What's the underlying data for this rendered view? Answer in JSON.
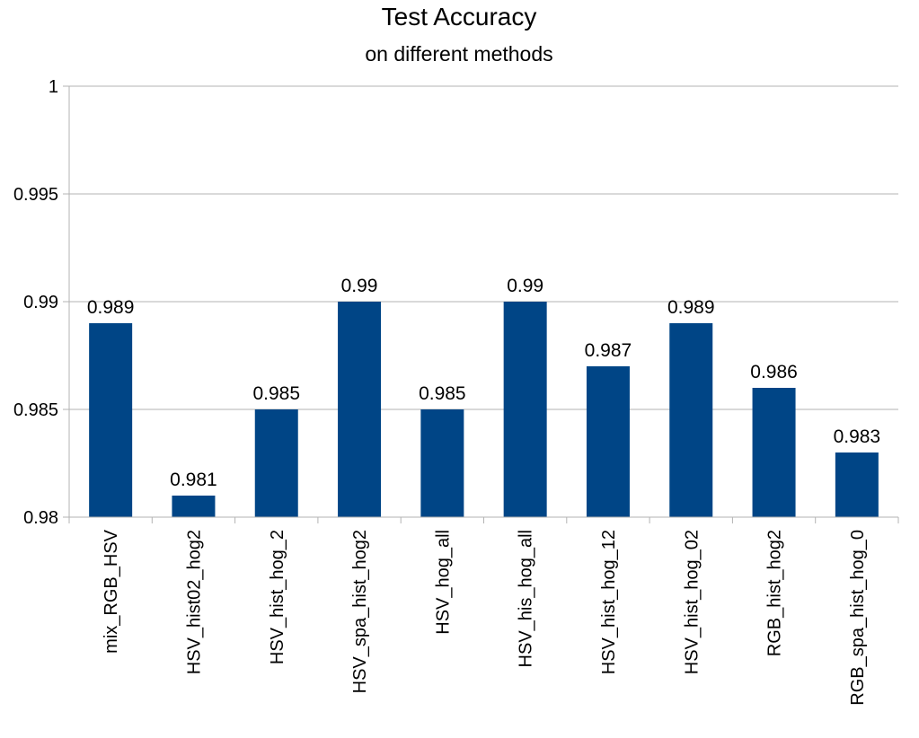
{
  "chart_data": {
    "type": "bar",
    "title": "Test Accuracy",
    "subtitle": "on different methods",
    "xlabel": "",
    "ylabel": "",
    "ylim": [
      0.98,
      1
    ],
    "yticks": [
      "0.98",
      "0.985",
      "0.99",
      "0.995",
      "1"
    ],
    "ytick_values": [
      0.98,
      0.985,
      0.99,
      0.995,
      1
    ],
    "grid": true,
    "legend": "none",
    "bar_color": "#004586",
    "categories": [
      "mix_RGB_HSV",
      "HSV_hist02_hog2",
      "HSV_hist_hog_2",
      "HSV_spa_hist_hog2",
      "HSV_hog_all",
      "HSV_his_hog_all",
      "HSV_hist_hog_12",
      "HSV_hist_hog_02",
      "RGB_hist_hog2",
      "RGB_spa_hist_hog_0"
    ],
    "values": [
      0.989,
      0.981,
      0.985,
      0.99,
      0.985,
      0.99,
      0.987,
      0.989,
      0.986,
      0.983
    ],
    "value_labels": [
      "0.989",
      "0.981",
      "0.985",
      "0.99",
      "0.985",
      "0.99",
      "0.987",
      "0.989",
      "0.986",
      "0.983"
    ]
  }
}
